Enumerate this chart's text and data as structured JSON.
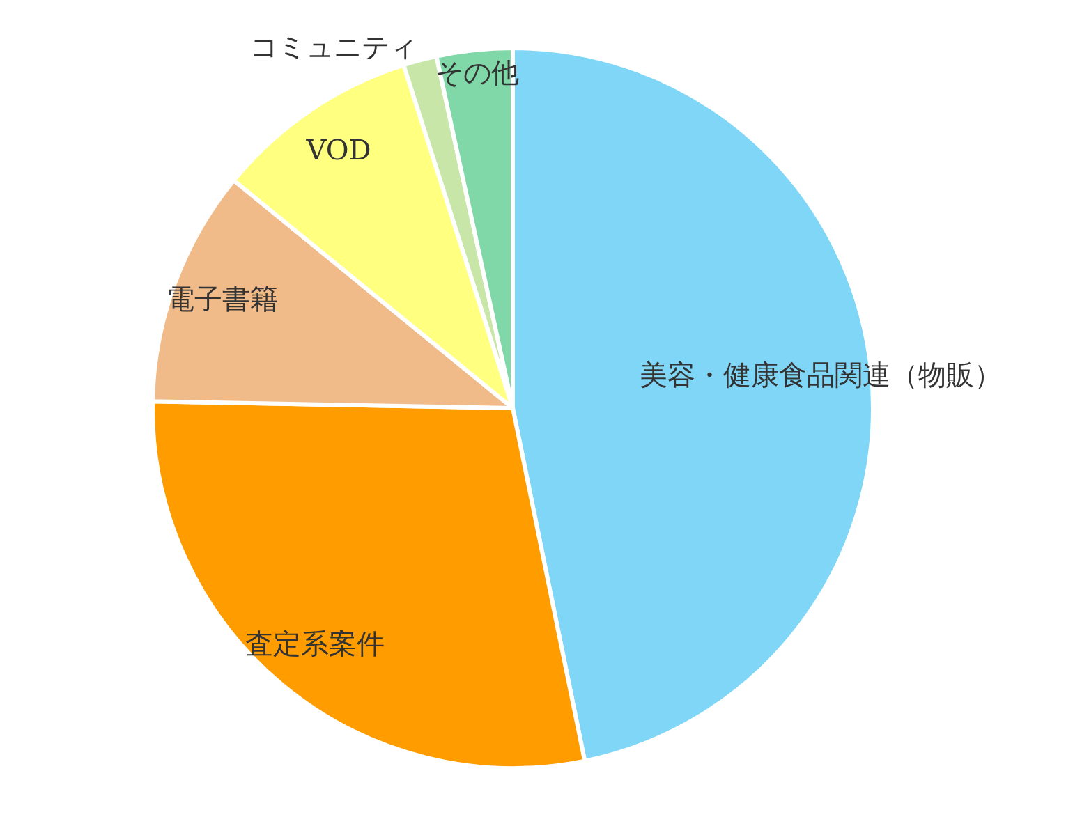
{
  "chart_data": {
    "type": "pie",
    "categories": [
      "美容・健康食品関連（物販）",
      "査定系案件",
      "電子書籍",
      "VOD",
      "コミュニティ",
      "その他"
    ],
    "values": [
      46.8,
      28.5,
      10.6,
      9.2,
      1.5,
      3.4
    ],
    "colors": [
      "#7fd6f6",
      "#ff9c00",
      "#f0bb88",
      "#ffff80",
      "#c8e6a8",
      "#80d8a8"
    ],
    "legend": false
  }
}
